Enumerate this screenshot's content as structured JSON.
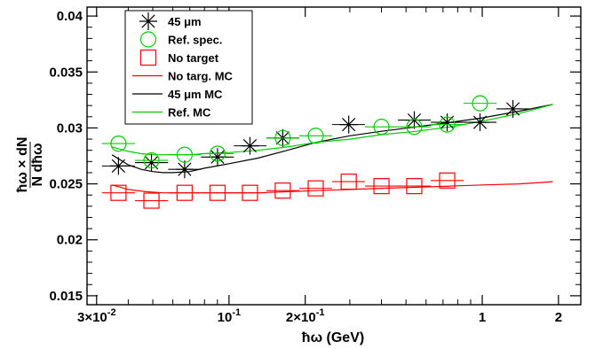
{
  "chart_data": {
    "type": "scatter",
    "title": "",
    "xlabel": "ħω (GeV)",
    "ylabel_top": "ħω",
    "ylabel_top_x": "×",
    "ylabel_top_dn": "dN",
    "ylabel_bottom": "N",
    "ylabel_bottom_d": "dħω",
    "x_scale": "log",
    "xlim": [
      0.0275,
      2.45
    ],
    "ylim": [
      0.0142,
      0.0408
    ],
    "x_major_ticks": [
      0.03,
      0.1,
      0.2,
      1,
      2
    ],
    "x_tick_labels": [
      {
        "base": "3×10",
        "exp": "-2"
      },
      {
        "base": "10",
        "exp": "-1"
      },
      {
        "base": "2×10",
        "exp": "-1"
      },
      {
        "base": "1",
        "exp": ""
      },
      {
        "base": "2",
        "exp": ""
      }
    ],
    "x_minor_ticks": [
      0.04,
      0.05,
      0.06,
      0.07,
      0.08,
      0.09,
      0.3,
      0.4,
      0.5,
      0.6,
      0.7,
      0.8,
      0.9
    ],
    "y_major_ticks": [
      0.015,
      0.02,
      0.025,
      0.03,
      0.035,
      0.04
    ],
    "y_tick_labels": [
      "0.015",
      "0.02",
      "0.025",
      "0.03",
      "0.035",
      "0.04"
    ],
    "grid": false,
    "legend_position": "top-left",
    "x_bin_edges": [
      0.0315,
      0.0425,
      0.0575,
      0.0775,
      0.1045,
      0.1405,
      0.1895,
      0.2555,
      0.3445,
      0.4645,
      0.6265,
      0.8445,
      1.1385,
      1.5345,
      2.0675
    ],
    "x_bin_centers": [
      0.0366,
      0.0494,
      0.0668,
      0.0901,
      0.121,
      0.163,
      0.22,
      0.297,
      0.4,
      0.539,
      0.727,
      0.98,
      1.322,
      1.782
    ],
    "series": [
      {
        "name": "45 μm",
        "kind": "points",
        "marker": "asterisk",
        "color": "#000000",
        "values": [
          0.0266,
          0.0269,
          0.0263,
          0.0274,
          0.0284,
          0.0291,
          null,
          0.0303,
          null,
          0.0307,
          0.0305,
          0.0305,
          0.0317,
          null
        ]
      },
      {
        "name": "Ref. spec.",
        "kind": "points",
        "marker": "open-circle",
        "color": "#00cc00",
        "values": [
          0.0286,
          0.0271,
          0.0276,
          0.0277,
          null,
          0.0291,
          0.0293,
          null,
          0.0301,
          0.0301,
          0.0303,
          0.0322,
          null,
          null
        ]
      },
      {
        "name": "No target",
        "kind": "points",
        "marker": "open-square",
        "color": "#ff0000",
        "values": [
          0.0242,
          0.0235,
          0.0242,
          0.0242,
          0.0242,
          0.0244,
          0.0246,
          0.0252,
          0.0248,
          0.0248,
          0.0253,
          null,
          null,
          null
        ]
      },
      {
        "name": "No targ. MC",
        "kind": "line",
        "color": "#ff0000",
        "x": [
          0.0345,
          0.04,
          0.047,
          0.055,
          0.065,
          0.08,
          0.1,
          0.13,
          0.17,
          0.22,
          0.3,
          0.4,
          0.55,
          0.75,
          1.0,
          1.4,
          1.9
        ],
        "values": [
          0.0249,
          0.0245,
          0.0243,
          0.0242,
          0.0242,
          0.0242,
          0.0242,
          0.0242,
          0.0243,
          0.0244,
          0.0245,
          0.0246,
          0.0247,
          0.0248,
          0.0249,
          0.025,
          0.0252
        ]
      },
      {
        "name": "45 μm MC",
        "kind": "line",
        "color": "#000000",
        "x": [
          0.0345,
          0.04,
          0.045,
          0.05,
          0.055,
          0.06,
          0.07,
          0.08,
          0.1,
          0.13,
          0.17,
          0.22,
          0.3,
          0.4,
          0.55,
          0.75,
          1.0,
          1.4,
          1.9
        ],
        "values": [
          0.0276,
          0.0267,
          0.0263,
          0.0261,
          0.026,
          0.026,
          0.0261,
          0.0264,
          0.0268,
          0.0273,
          0.028,
          0.0287,
          0.0293,
          0.0297,
          0.0301,
          0.0305,
          0.0309,
          0.0315,
          0.0321
        ]
      },
      {
        "name": "Ref. MC",
        "kind": "line",
        "color": "#00cc00",
        "x": [
          0.0345,
          0.04,
          0.045,
          0.05,
          0.055,
          0.06,
          0.07,
          0.08,
          0.1,
          0.13,
          0.17,
          0.22,
          0.3,
          0.4,
          0.55,
          0.75,
          1.0,
          1.4,
          1.9
        ],
        "values": [
          0.0283,
          0.0279,
          0.0277,
          0.0276,
          0.0276,
          0.0276,
          0.0276,
          0.0277,
          0.0278,
          0.028,
          0.0283,
          0.0287,
          0.029,
          0.0294,
          0.0297,
          0.0301,
          0.0306,
          0.0313,
          0.0321
        ]
      }
    ]
  }
}
